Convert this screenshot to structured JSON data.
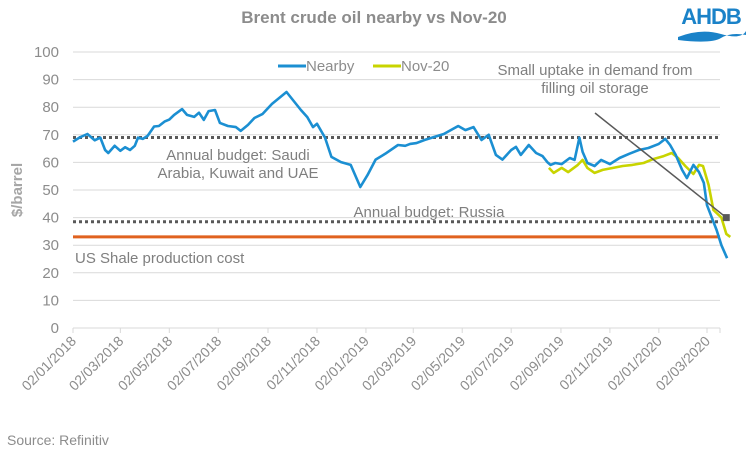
{
  "logo": {
    "text": "AHDB",
    "color": "#1a82c8"
  },
  "source": "Source: Refinitiv",
  "chart_data": {
    "type": "line",
    "title": "Brent crude oil nearby vs Nov-20",
    "xlabel": "",
    "ylabel": "$/barrel",
    "ylim": [
      0,
      100
    ],
    "yticks": [
      0,
      10,
      20,
      30,
      40,
      50,
      60,
      70,
      80,
      90,
      100
    ],
    "xlim": [
      "2018-01-02",
      "2020-03-31"
    ],
    "xtick_labels": [
      "02/01/2018",
      "02/03/2018",
      "02/05/2018",
      "02/07/2018",
      "02/09/2018",
      "02/11/2018",
      "02/01/2019",
      "02/03/2019",
      "02/05/2019",
      "02/07/2019",
      "02/09/2019",
      "02/11/2019",
      "02/01/2020",
      "02/03/2020"
    ],
    "xtick_dates": [
      "2018-01-02",
      "2018-03-02",
      "2018-05-02",
      "2018-07-02",
      "2018-09-02",
      "2018-11-02",
      "2019-01-02",
      "2019-03-02",
      "2019-05-02",
      "2019-07-02",
      "2019-09-02",
      "2019-11-02",
      "2020-01-02",
      "2020-03-02"
    ],
    "grid": "horizontal",
    "legend": {
      "position": "top-center",
      "entries": [
        "Nearby",
        "Nov-20"
      ]
    },
    "series": [
      {
        "name": "Nearby",
        "color": "#1b8fd2",
        "points": [
          [
            "2018-01-02",
            67.5
          ],
          [
            "2018-01-10",
            69.0
          ],
          [
            "2018-01-20",
            70.3
          ],
          [
            "2018-01-29",
            68.0
          ],
          [
            "2018-02-05",
            69.0
          ],
          [
            "2018-02-11",
            64.5
          ],
          [
            "2018-02-15",
            63.4
          ],
          [
            "2018-02-23",
            66.0
          ],
          [
            "2018-03-02",
            64.2
          ],
          [
            "2018-03-08",
            65.5
          ],
          [
            "2018-03-14",
            64.5
          ],
          [
            "2018-03-20",
            66.0
          ],
          [
            "2018-03-24",
            69.0
          ],
          [
            "2018-03-30",
            68.5
          ],
          [
            "2018-04-05",
            69.6
          ],
          [
            "2018-04-13",
            73.0
          ],
          [
            "2018-04-19",
            73.2
          ],
          [
            "2018-04-26",
            74.8
          ],
          [
            "2018-05-02",
            75.5
          ],
          [
            "2018-05-08",
            77.2
          ],
          [
            "2018-05-18",
            79.3
          ],
          [
            "2018-05-24",
            77.2
          ],
          [
            "2018-06-02",
            76.5
          ],
          [
            "2018-06-08",
            78.0
          ],
          [
            "2018-06-14",
            75.4
          ],
          [
            "2018-06-20",
            78.6
          ],
          [
            "2018-06-28",
            79.0
          ],
          [
            "2018-07-04",
            74.3
          ],
          [
            "2018-07-14",
            73.2
          ],
          [
            "2018-07-24",
            72.8
          ],
          [
            "2018-07-30",
            71.4
          ],
          [
            "2018-08-08",
            73.6
          ],
          [
            "2018-08-16",
            76.1
          ],
          [
            "2018-08-26",
            77.5
          ],
          [
            "2018-09-07",
            81.2
          ],
          [
            "2018-09-25",
            85.5
          ],
          [
            "2018-10-03",
            82.6
          ],
          [
            "2018-10-13",
            79.0
          ],
          [
            "2018-10-21",
            76.4
          ],
          [
            "2018-10-28",
            72.8
          ],
          [
            "2018-11-02",
            74.0
          ],
          [
            "2018-11-12",
            69.0
          ],
          [
            "2018-11-20",
            62.0
          ],
          [
            "2018-12-02",
            60.1
          ],
          [
            "2018-12-14",
            59.1
          ],
          [
            "2018-12-26",
            51.1
          ],
          [
            "2019-01-04",
            55.4
          ],
          [
            "2019-01-14",
            61.0
          ],
          [
            "2019-01-26",
            63.1
          ],
          [
            "2019-02-11",
            66.3
          ],
          [
            "2019-02-20",
            66.0
          ],
          [
            "2019-02-26",
            66.7
          ],
          [
            "2019-03-06",
            67.0
          ],
          [
            "2019-03-16",
            68.1
          ],
          [
            "2019-03-28",
            69.2
          ],
          [
            "2019-04-09",
            70.3
          ],
          [
            "2019-04-27",
            73.2
          ],
          [
            "2019-05-06",
            71.7
          ],
          [
            "2019-05-16",
            72.8
          ],
          [
            "2019-05-26",
            68.1
          ],
          [
            "2019-06-04",
            70.0
          ],
          [
            "2019-06-13",
            62.7
          ],
          [
            "2019-06-21",
            61.0
          ],
          [
            "2019-07-02",
            64.5
          ],
          [
            "2019-07-08",
            65.6
          ],
          [
            "2019-07-14",
            62.7
          ],
          [
            "2019-07-24",
            66.3
          ],
          [
            "2019-08-02",
            63.4
          ],
          [
            "2019-08-10",
            62.3
          ],
          [
            "2019-08-16",
            60.1
          ],
          [
            "2019-08-20",
            59.1
          ],
          [
            "2019-08-26",
            59.8
          ],
          [
            "2019-09-03",
            59.4
          ],
          [
            "2019-09-13",
            61.6
          ],
          [
            "2019-09-19",
            60.9
          ],
          [
            "2019-09-25",
            69.0
          ],
          [
            "2019-09-29",
            63.8
          ],
          [
            "2019-10-05",
            59.8
          ],
          [
            "2019-10-14",
            58.7
          ],
          [
            "2019-10-22",
            60.9
          ],
          [
            "2019-11-02",
            59.4
          ],
          [
            "2019-11-14",
            61.6
          ],
          [
            "2019-11-26",
            63.1
          ],
          [
            "2019-12-08",
            64.5
          ],
          [
            "2019-12-20",
            65.2
          ],
          [
            "2020-01-02",
            66.7
          ],
          [
            "2020-01-10",
            68.5
          ],
          [
            "2020-01-16",
            66.3
          ],
          [
            "2020-01-23",
            62.7
          ],
          [
            "2020-01-31",
            57.3
          ],
          [
            "2020-02-06",
            54.3
          ],
          [
            "2020-02-14",
            59.1
          ],
          [
            "2020-02-21",
            56.5
          ],
          [
            "2020-02-27",
            52.6
          ],
          [
            "2020-03-02",
            44.5
          ],
          [
            "2020-03-14",
            35.5
          ],
          [
            "2020-03-20",
            30.0
          ],
          [
            "2020-03-27",
            25.3
          ]
        ]
      },
      {
        "name": "Nov-20",
        "color": "#c8d400",
        "points": [
          [
            "2019-08-18",
            58.0
          ],
          [
            "2019-08-24",
            56.2
          ],
          [
            "2019-09-03",
            58.0
          ],
          [
            "2019-09-11",
            56.5
          ],
          [
            "2019-09-23",
            59.1
          ],
          [
            "2019-09-29",
            60.9
          ],
          [
            "2019-10-05",
            58.0
          ],
          [
            "2019-10-14",
            56.2
          ],
          [
            "2019-10-24",
            57.3
          ],
          [
            "2019-11-06",
            58.0
          ],
          [
            "2019-11-18",
            58.7
          ],
          [
            "2019-11-30",
            59.1
          ],
          [
            "2019-12-14",
            59.8
          ],
          [
            "2019-12-26",
            61.2
          ],
          [
            "2020-01-08",
            62.3
          ],
          [
            "2020-01-18",
            63.4
          ],
          [
            "2020-01-26",
            61.6
          ],
          [
            "2020-02-04",
            58.7
          ],
          [
            "2020-02-14",
            55.8
          ],
          [
            "2020-02-21",
            59.1
          ],
          [
            "2020-02-26",
            58.7
          ],
          [
            "2020-03-04",
            51.8
          ],
          [
            "2020-03-10",
            42.8
          ],
          [
            "2020-03-20",
            40.0
          ],
          [
            "2020-03-26",
            34.1
          ],
          [
            "2020-03-31",
            33.0
          ]
        ]
      }
    ],
    "reference_lines": [
      {
        "name": "Annual budget: Saudi Arabia, Kuwait and UAE",
        "value": 69,
        "style": "dotted",
        "color": "#595959"
      },
      {
        "name": "Annual budget: Russia",
        "value": 38.5,
        "style": "dotted",
        "color": "#595959"
      },
      {
        "name": "US Shale production cost",
        "value": 33,
        "style": "solid",
        "color": "#e0621f"
      }
    ],
    "annotations": [
      {
        "text_lines": [
          "Annual budget: Saudi",
          "Arabia, Kuwait and UAE"
        ]
      },
      {
        "text_lines": [
          "Annual budget: Russia"
        ]
      },
      {
        "text_lines": [
          "US Shale production cost"
        ]
      },
      {
        "text_lines": [
          "Small uptake in demand from",
          "filling oil storage"
        ],
        "arrow_to": {
          "date": "2020-03-26",
          "value": 40
        }
      }
    ]
  }
}
